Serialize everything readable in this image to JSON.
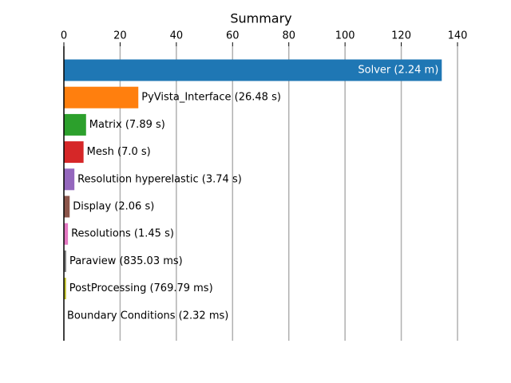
{
  "chart_data": {
    "type": "barh",
    "title": "Summary",
    "values": [
      134.4,
      26.48,
      7.89,
      7.0,
      3.74,
      2.06,
      1.45,
      0.83503,
      0.76979,
      0.00232
    ],
    "value_labels": [
      "Solver (2.24 m)",
      "PyVista_Interface (26.48 s)",
      "Matrix (7.89 s)",
      "Mesh (7.0 s)",
      "Resolution hyperelastic (3.74 s)",
      "Display (2.06 s)",
      "Resolutions (1.45 s)",
      "Paraview (835.03 ms)",
      "PostProcessing (769.79 ms)",
      "Boundary Conditions (2.32 ms)"
    ],
    "colors": [
      "#1f77b4",
      "#ff7f0e",
      "#2ca02c",
      "#d62728",
      "#9467bd",
      "#8c564b",
      "#e377c2",
      "#7f7f7f",
      "#bcbd22",
      "#17becf"
    ],
    "xlim": [
      0,
      140
    ],
    "xticks": [
      0,
      20,
      40,
      60,
      80,
      100,
      120,
      140
    ],
    "grid": true
  }
}
